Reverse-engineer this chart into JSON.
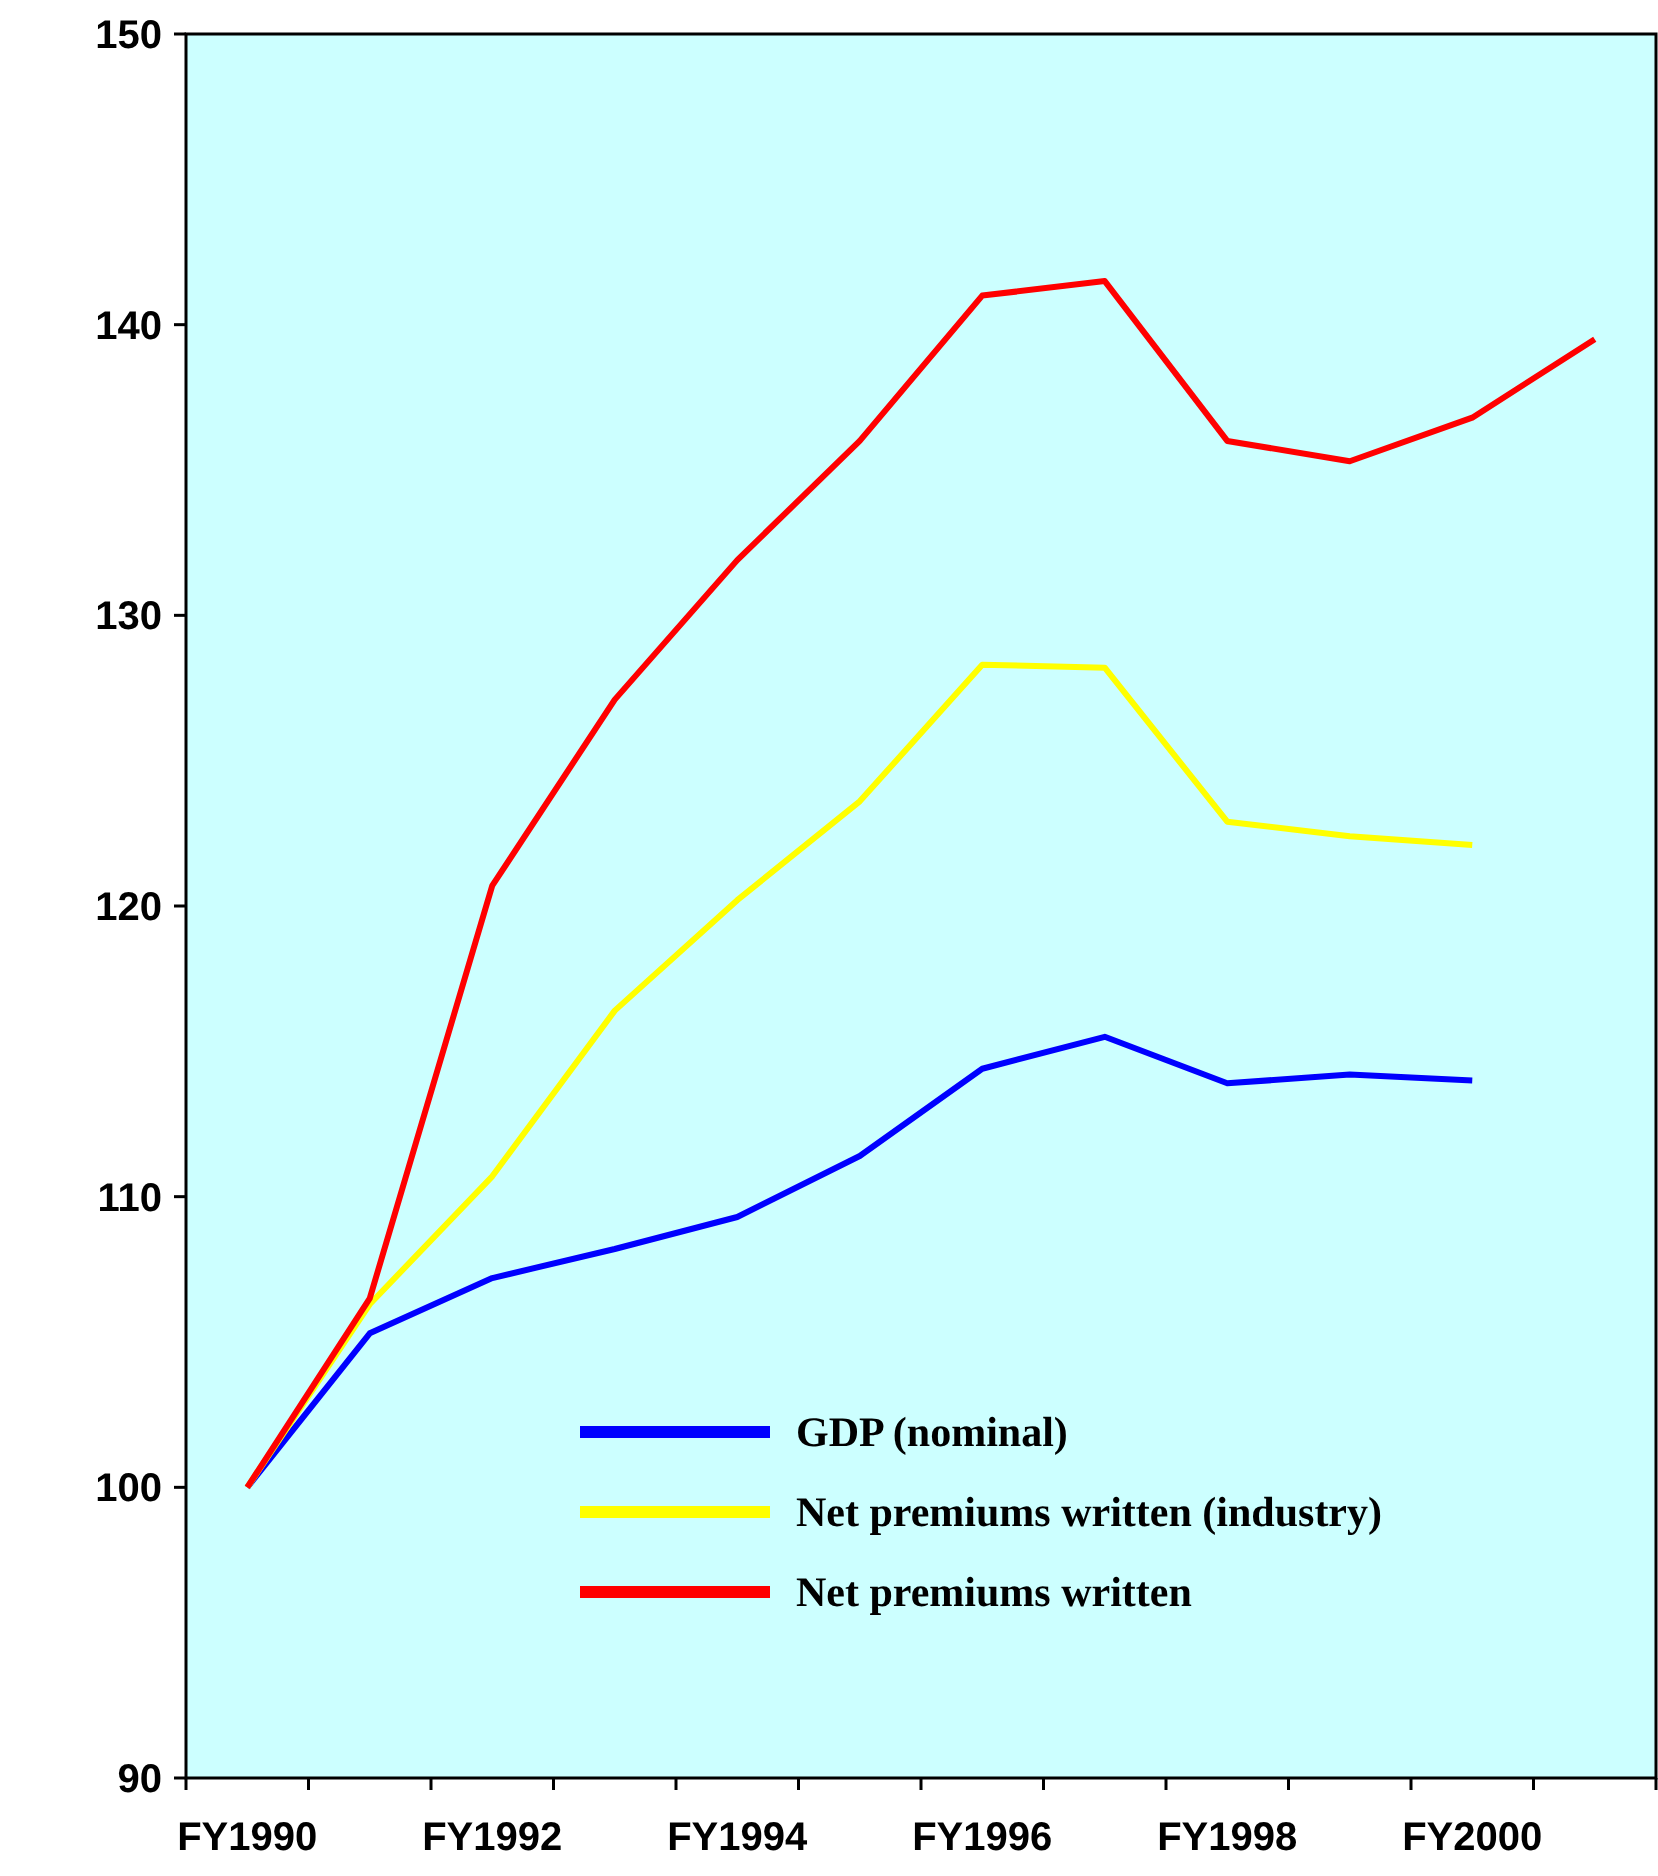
{
  "chart_data": {
    "type": "line",
    "categories": [
      "FY1990",
      null,
      "FY1992",
      null,
      "FY1994",
      null,
      "FY1996",
      null,
      "FY1998",
      null,
      "FY2000",
      null
    ],
    "ylim": [
      90,
      150
    ],
    "yticks": [
      90,
      100,
      110,
      120,
      130,
      140,
      150
    ],
    "grid": false,
    "legend": "bottom right",
    "marker": "none",
    "series": [
      {
        "name": "GDP (nominal)",
        "color": "#0000ff",
        "values": [
          100,
          105.3,
          107.2,
          108.2,
          109.3,
          111.4,
          114.4,
          115.5,
          113.9,
          114.2,
          114.0,
          null
        ]
      },
      {
        "name": "Net premiums written (industry)",
        "color": "#ffff00",
        "values": [
          100,
          106.3,
          110.7,
          116.4,
          120.2,
          123.6,
          128.3,
          128.2,
          122.9,
          122.4,
          122.1,
          null
        ]
      },
      {
        "name": "Net premiums written",
        "color": "#ff0000",
        "values": [
          100,
          106.5,
          120.7,
          127.1,
          131.9,
          136.0,
          141.0,
          141.5,
          136.0,
          135.3,
          136.8,
          139.5
        ]
      }
    ]
  }
}
